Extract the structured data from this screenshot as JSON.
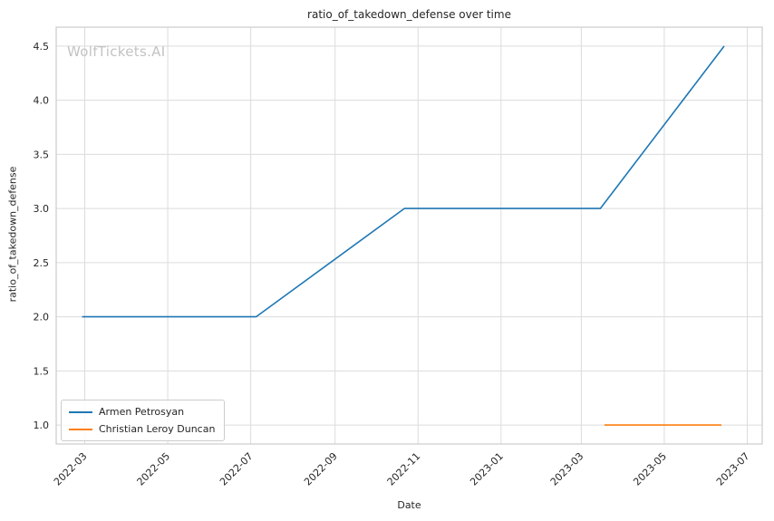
{
  "chart_data": {
    "type": "line",
    "title": "ratio_of_takedown_defense over time",
    "watermark": "WolfTickets.AI",
    "xlabel": "Date",
    "ylabel": "ratio_of_takedown_defense",
    "grid": true,
    "legend_position": "lower left",
    "x_ticks": [
      "2022-03",
      "2022-05",
      "2022-07",
      "2022-09",
      "2022-11",
      "2023-01",
      "2023-03",
      "2023-05",
      "2023-07"
    ],
    "y_ticks": [
      "1.0",
      "1.5",
      "2.0",
      "2.5",
      "3.0",
      "3.5",
      "4.0",
      "4.5"
    ],
    "x_domain": [
      "2022-02-08",
      "2023-07-12"
    ],
    "y_domain": [
      0.825,
      4.675
    ],
    "colors": {
      "grid": "#dcdcdc",
      "frame": "#cccccc",
      "text": "#262626",
      "watermark": "#c3c3c3"
    },
    "series": [
      {
        "name": "Armen Petrosyan",
        "color": "#1f77b4",
        "points": [
          [
            "2022-02-27",
            2.0
          ],
          [
            "2022-07-05",
            2.0
          ],
          [
            "2022-10-22",
            3.0
          ],
          [
            "2023-03-15",
            3.0
          ],
          [
            "2023-06-14",
            4.5
          ]
        ]
      },
      {
        "name": "Christian Leroy Duncan",
        "color": "#ff7f0e",
        "points": [
          [
            "2023-03-18",
            1.0
          ],
          [
            "2023-06-12",
            1.0
          ]
        ]
      }
    ]
  }
}
